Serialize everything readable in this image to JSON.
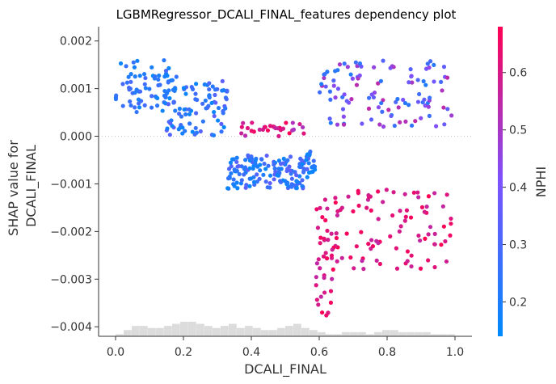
{
  "chart_data": {
    "type": "scatter",
    "title": "LGBMRegressor_DCALI_FINAL_features dependency plot",
    "xlabel": "DCALI_FINAL",
    "ylabel": "SHAP value for\nDCALI_FINAL",
    "colorbar_label": "NPHI",
    "xlim": [
      -0.05,
      1.05
    ],
    "ylim": [
      -0.0042,
      0.0023
    ],
    "x_ticks": [
      0.0,
      0.2,
      0.4,
      0.6,
      0.8,
      1.0
    ],
    "x_tick_labels": [
      "0.0",
      "0.2",
      "0.4",
      "0.6",
      "0.8",
      "1.0"
    ],
    "y_ticks": [
      0.002,
      0.001,
      0.0,
      -0.001,
      -0.002,
      -0.003,
      -0.004
    ],
    "y_tick_labels": [
      "0.002",
      "0.001",
      "0.000",
      "−0.001",
      "−0.002",
      "−0.003",
      "−0.004"
    ],
    "colorbar_range": [
      0.14,
      0.68
    ],
    "colorbar_ticks": [
      0.2,
      0.3,
      0.4,
      0.5,
      0.6
    ],
    "colorbar_tick_labels": [
      "0.2",
      "0.3",
      "0.4",
      "0.5",
      "0.6"
    ],
    "colormap": [
      "#008afb",
      "#7c52ff",
      "#ff0052"
    ],
    "zero_line": true,
    "histogram_color": "#dcdcdc",
    "clusters": [
      {
        "x_range": [
          0.0,
          0.18
        ],
        "y_range": [
          0.0005,
          0.0016
        ],
        "color_range": [
          0.15,
          0.3
        ],
        "n": 75
      },
      {
        "x_range": [
          0.15,
          0.33
        ],
        "y_range": [
          0.0,
          0.0012
        ],
        "color_range": [
          0.15,
          0.35
        ],
        "n": 90
      },
      {
        "x_range": [
          0.33,
          0.57
        ],
        "y_range": [
          -0.0011,
          -0.0004
        ],
        "color_range": [
          0.15,
          0.35
        ],
        "n": 140
      },
      {
        "x_range": [
          0.36,
          0.56
        ],
        "y_range": [
          0.0,
          0.0003
        ],
        "color_range": [
          0.5,
          0.68
        ],
        "n": 30
      },
      {
        "x_range": [
          0.55,
          0.59
        ],
        "y_range": [
          -0.0009,
          -0.0003
        ],
        "color_range": [
          0.15,
          0.3
        ],
        "n": 20
      },
      {
        "x_range": [
          0.6,
          0.99
        ],
        "y_range": [
          0.0002,
          0.0016
        ],
        "color_range": [
          0.2,
          0.55
        ],
        "n": 110
      },
      {
        "x_range": [
          0.6,
          0.99
        ],
        "y_range": [
          -0.0028,
          -0.0011
        ],
        "color_range": [
          0.55,
          0.68
        ],
        "n": 100
      },
      {
        "x_range": [
          0.59,
          0.64
        ],
        "y_range": [
          -0.0038,
          -0.0015
        ],
        "color_range": [
          0.55,
          0.68
        ],
        "n": 30
      }
    ],
    "histogram_counts": [
      1,
      3,
      5,
      5,
      4,
      4,
      5,
      6,
      7,
      7,
      6,
      5,
      4,
      5,
      6,
      4,
      5,
      4,
      3,
      3,
      4,
      5,
      6,
      4,
      3,
      2,
      1,
      1,
      2,
      2,
      2,
      1,
      2,
      3,
      3,
      2,
      2,
      2,
      2,
      1,
      1,
      1
    ]
  }
}
